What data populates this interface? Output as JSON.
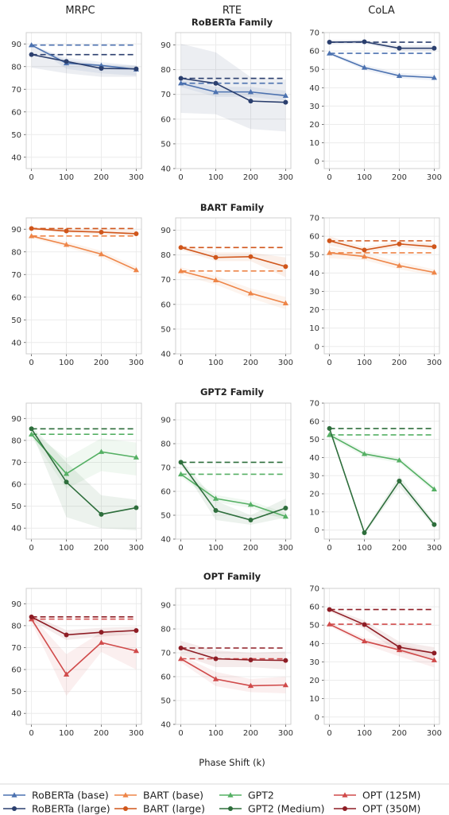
{
  "column_titles": [
    "MRPC",
    "RTE",
    "CoLA"
  ],
  "family_titles": [
    "RoBERTa Family",
    "BART Family",
    "GPT2 Family",
    "OPT Family"
  ],
  "x_axis_label": "Phase Shift (k)",
  "chart_data": {
    "type": "line",
    "x": [
      0,
      100,
      200,
      300
    ],
    "xticks": [
      0,
      100,
      200,
      300
    ],
    "grid": true,
    "legend_position": "bottom",
    "colors": {
      "RoBERTa (base)": "#4c72b0",
      "RoBERTa (large)": "#2b3f6e",
      "BART (base)": "#ee8548",
      "BART (large)": "#d0561b",
      "GPT2": "#55b064",
      "GPT2 (Medium)": "#2e6e3c",
      "OPT (125M)": "#d04a4a",
      "OPT (350M)": "#8e1d25"
    },
    "legend": [
      {
        "name": "RoBERTa (base)",
        "marker": "triangle"
      },
      {
        "name": "RoBERTa (large)",
        "marker": "circle"
      },
      {
        "name": "BART (base)",
        "marker": "triangle"
      },
      {
        "name": "BART (large)",
        "marker": "circle"
      },
      {
        "name": "GPT2",
        "marker": "triangle"
      },
      {
        "name": "GPT2 (Medium)",
        "marker": "circle"
      },
      {
        "name": "OPT (125M)",
        "marker": "triangle"
      },
      {
        "name": "OPT (350M)",
        "marker": "circle"
      }
    ],
    "panels": [
      {
        "family": "RoBERTa Family",
        "task": "MRPC",
        "ylim": [
          35,
          95
        ],
        "yticks": [
          40,
          50,
          60,
          70,
          80,
          90
        ],
        "series": [
          {
            "name": "RoBERTa (base)",
            "values": [
              89.5,
              81.5,
              80.5,
              78.8
            ],
            "baseline": 89.5,
            "band": [
              [
                89.5,
                89.5
              ],
              [
                79,
                84
              ],
              [
                77,
                82
              ],
              [
                76,
                80.5
              ]
            ]
          },
          {
            "name": "RoBERTa (large)",
            "values": [
              85.3,
              82.3,
              79.2,
              79.0
            ],
            "baseline": 85.3,
            "band": [
              [
                79.5,
                89.5
              ],
              [
                77,
                83
              ],
              [
                75.5,
                81
              ],
              [
                75.5,
                80.5
              ]
            ]
          }
        ]
      },
      {
        "family": "RoBERTa Family",
        "task": "RTE",
        "ylim": [
          40,
          95
        ],
        "yticks": [
          40,
          50,
          60,
          70,
          80,
          90
        ],
        "series": [
          {
            "name": "RoBERTa (base)",
            "values": [
              74.5,
              71.0,
              71.0,
              69.5
            ],
            "baseline": 74.5,
            "band": [
              [
                73,
                76
              ],
              [
                69,
                73
              ],
              [
                69,
                73
              ],
              [
                67.5,
                71.5
              ]
            ]
          },
          {
            "name": "RoBERTa (large)",
            "values": [
              76.5,
              74.5,
              67.3,
              66.8
            ],
            "baseline": 76.5,
            "band": [
              [
                62.5,
                90.5
              ],
              [
                62,
                87
              ],
              [
                56,
                77
              ],
              [
                55,
                76
              ]
            ]
          }
        ]
      },
      {
        "family": "RoBERTa Family",
        "task": "CoLA",
        "ylim": [
          -4,
          70
        ],
        "yticks": [
          0,
          10,
          20,
          30,
          40,
          50,
          60,
          70
        ],
        "series": [
          {
            "name": "RoBERTa (base)",
            "values": [
              58.7,
              51.0,
              46.5,
              45.5
            ],
            "baseline": 58.7,
            "band": [
              [
                58,
                59.5
              ],
              [
                49.5,
                52.5
              ],
              [
                45,
                48
              ],
              [
                44,
                47
              ]
            ]
          },
          {
            "name": "RoBERTa (large)",
            "values": [
              64.8,
              65.0,
              61.5,
              61.5
            ],
            "baseline": 64.8,
            "band": [
              [
                63.5,
                66
              ],
              [
                64,
                66
              ],
              [
                60,
                63
              ],
              [
                60,
                63
              ]
            ]
          }
        ]
      },
      {
        "family": "BART Family",
        "task": "MRPC",
        "ylim": [
          35,
          95
        ],
        "yticks": [
          40,
          50,
          60,
          70,
          80,
          90
        ],
        "series": [
          {
            "name": "BART (base)",
            "values": [
              87.0,
              83.2,
              79.0,
              72.0
            ],
            "baseline": 87.0,
            "band": [
              [
                86,
                88
              ],
              [
                82,
                84.5
              ],
              [
                77.5,
                80.5
              ],
              [
                70.5,
                73.5
              ]
            ]
          },
          {
            "name": "BART (large)",
            "values": [
              90.3,
              89.2,
              88.7,
              88.0
            ],
            "baseline": 90.3,
            "band": [
              [
                89.5,
                91
              ],
              [
                88.5,
                90
              ],
              [
                87.5,
                90
              ],
              [
                87,
                89.5
              ]
            ]
          }
        ]
      },
      {
        "family": "BART Family",
        "task": "RTE",
        "ylim": [
          40,
          95
        ],
        "yticks": [
          40,
          50,
          60,
          70,
          80,
          90
        ],
        "series": [
          {
            "name": "BART (base)",
            "values": [
              73.5,
              69.8,
              64.5,
              60.5
            ],
            "baseline": 73.5,
            "band": [
              [
                72,
                75
              ],
              [
                68,
                71.5
              ],
              [
                62.5,
                66.5
              ],
              [
                58,
                63
              ]
            ]
          },
          {
            "name": "BART (large)",
            "values": [
              83.0,
              79.0,
              79.3,
              75.3
            ],
            "baseline": 83.0,
            "band": [
              [
                82,
                84
              ],
              [
                77.5,
                81
              ],
              [
                77.5,
                81
              ],
              [
                71,
                79
              ]
            ]
          }
        ]
      },
      {
        "family": "BART Family",
        "task": "CoLA",
        "ylim": [
          -4,
          70
        ],
        "yticks": [
          0,
          10,
          20,
          30,
          40,
          50,
          60,
          70
        ],
        "series": [
          {
            "name": "BART (base)",
            "values": [
              51.0,
              49.0,
              44.0,
              40.3
            ],
            "baseline": 51.0,
            "band": [
              [
                48,
                54
              ],
              [
                47,
                51
              ],
              [
                42,
                46
              ],
              [
                38.5,
                42
              ]
            ]
          },
          {
            "name": "BART (large)",
            "values": [
              57.5,
              52.5,
              55.8,
              54.3
            ],
            "baseline": 57.5,
            "band": [
              [
                55,
                60
              ],
              [
                51,
                54
              ],
              [
                54,
                57.5
              ],
              [
                52.5,
                56
              ]
            ]
          }
        ]
      },
      {
        "family": "GPT2 Family",
        "task": "MRPC",
        "ylim": [
          35,
          97
        ],
        "yticks": [
          40,
          50,
          60,
          70,
          80,
          90
        ],
        "series": [
          {
            "name": "GPT2",
            "values": [
              82.8,
              64.8,
              74.8,
              72.3
            ],
            "baseline": 82.8,
            "band": [
              [
                81.5,
                84
              ],
              [
                58,
                72
              ],
              [
                66,
                81
              ],
              [
                64,
                79
              ]
            ]
          },
          {
            "name": "GPT2 (Medium)",
            "values": [
              85.3,
              61.0,
              46.3,
              49.3
            ],
            "baseline": 85.3,
            "band": [
              [
                84,
                86.5
              ],
              [
                45,
                70
              ],
              [
                40,
                55
              ],
              [
                39,
                53
              ]
            ]
          }
        ]
      },
      {
        "family": "GPT2 Family",
        "task": "RTE",
        "ylim": [
          40,
          97
        ],
        "yticks": [
          40,
          50,
          60,
          70,
          80,
          90
        ],
        "series": [
          {
            "name": "GPT2",
            "values": [
              67.2,
              57.0,
              54.5,
              49.5
            ],
            "baseline": 67.2,
            "band": [
              [
                66,
                68.5
              ],
              [
                55.5,
                58.5
              ],
              [
                53,
                56
              ],
              [
                48,
                51
              ]
            ]
          },
          {
            "name": "GPT2 (Medium)",
            "values": [
              72.2,
              52.0,
              48.0,
              53.0
            ],
            "baseline": 72.2,
            "band": [
              [
                71,
                73.5
              ],
              [
                48,
                56
              ],
              [
                46,
                50
              ],
              [
                49,
                57
              ]
            ]
          }
        ]
      },
      {
        "family": "GPT2 Family",
        "task": "CoLA",
        "ylim": [
          -5,
          70
        ],
        "yticks": [
          0,
          10,
          20,
          30,
          40,
          50,
          60,
          70
        ],
        "series": [
          {
            "name": "GPT2",
            "values": [
              52.5,
              42.0,
              38.5,
              22.5
            ],
            "baseline": 52.5,
            "band": [
              [
                51,
                54
              ],
              [
                40.5,
                43.5
              ],
              [
                37,
                40
              ],
              [
                21,
                24
              ]
            ]
          },
          {
            "name": "GPT2 (Medium)",
            "values": [
              56.0,
              -1.5,
              27.0,
              3.0
            ],
            "baseline": 56.0,
            "band": [
              [
                55,
                57
              ],
              [
                -2.5,
                -0.5
              ],
              [
                24,
                30
              ],
              [
                1.5,
                4.5
              ]
            ]
          }
        ]
      },
      {
        "family": "OPT Family",
        "task": "MRPC",
        "ylim": [
          35,
          97
        ],
        "yticks": [
          40,
          50,
          60,
          70,
          80,
          90
        ],
        "series": [
          {
            "name": "OPT (125M)",
            "values": [
              83.0,
              57.8,
              72.3,
              68.5
            ],
            "baseline": 83.0,
            "band": [
              [
                81.5,
                84.5
              ],
              [
                48,
                67
              ],
              [
                68,
                77
              ],
              [
                60,
                76
              ]
            ]
          },
          {
            "name": "OPT (350M)",
            "values": [
              84.0,
              75.8,
              77.0,
              77.8
            ],
            "baseline": 84.0,
            "band": [
              [
                82.5,
                85
              ],
              [
                73.5,
                78
              ],
              [
                75,
                79
              ],
              [
                76,
                79.5
              ]
            ]
          }
        ]
      },
      {
        "family": "OPT Family",
        "task": "RTE",
        "ylim": [
          40,
          97
        ],
        "yticks": [
          40,
          50,
          60,
          70,
          80,
          90
        ],
        "series": [
          {
            "name": "OPT (125M)",
            "values": [
              67.5,
              59.0,
              56.2,
              56.5
            ],
            "baseline": 67.5,
            "band": [
              [
                66,
                69
              ],
              [
                56,
                62
              ],
              [
                53.5,
                59
              ],
              [
                53,
                60
              ]
            ]
          },
          {
            "name": "OPT (350M)",
            "values": [
              72.0,
              67.5,
              67.0,
              66.8
            ],
            "baseline": 72.0,
            "band": [
              [
                69,
                75
              ],
              [
                64,
                71
              ],
              [
                64,
                70
              ],
              [
                63,
                70.5
              ]
            ]
          }
        ]
      },
      {
        "family": "OPT Family",
        "task": "CoLA",
        "ylim": [
          -4,
          70
        ],
        "yticks": [
          0,
          10,
          20,
          30,
          40,
          50,
          60,
          70
        ],
        "series": [
          {
            "name": "OPT (125M)",
            "values": [
              50.5,
              41.3,
              36.5,
              31.0
            ],
            "baseline": 50.5,
            "band": [
              [
                49.5,
                51.5
              ],
              [
                39.5,
                43
              ],
              [
                33,
                40
              ],
              [
                27,
                35
              ]
            ]
          },
          {
            "name": "OPT (350M)",
            "values": [
              58.5,
              50.3,
              38.0,
              34.8
            ],
            "baseline": 58.5,
            "band": [
              [
                57.5,
                59.5
              ],
              [
                48,
                52.5
              ],
              [
                35,
                41
              ],
              [
                31.5,
                38
              ]
            ]
          }
        ]
      }
    ]
  }
}
